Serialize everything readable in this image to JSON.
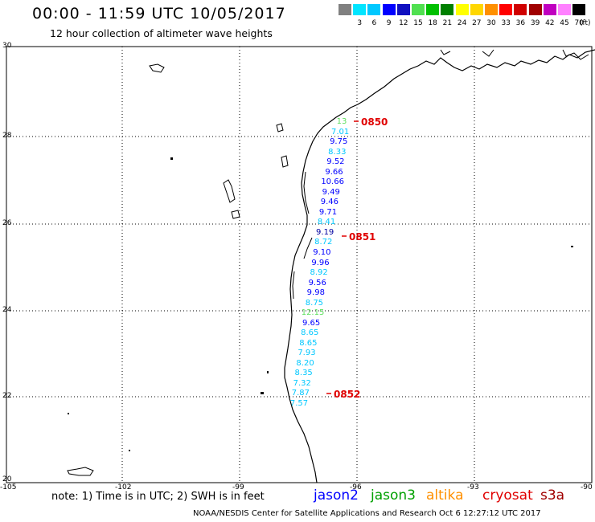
{
  "header": {
    "title": "00:00 - 11:59 UTC 10/05/2017",
    "subtitle": "12 hour collection of altimeter wave heights"
  },
  "scale": {
    "unit": "(ft)",
    "steps": [
      {
        "label": "",
        "color": "#808080"
      },
      {
        "label": "3",
        "color": "#00e5ff"
      },
      {
        "label": "6",
        "color": "#00c8ff"
      },
      {
        "label": "9",
        "color": "#0000ff"
      },
      {
        "label": "12",
        "color": "#1010c0"
      },
      {
        "label": "15",
        "color": "#50e050"
      },
      {
        "label": "18",
        "color": "#00c000"
      },
      {
        "label": "21",
        "color": "#008000"
      },
      {
        "label": "24",
        "color": "#ffff00"
      },
      {
        "label": "27",
        "color": "#ffd700"
      },
      {
        "label": "30",
        "color": "#ff9000"
      },
      {
        "label": "33",
        "color": "#ff0000"
      },
      {
        "label": "36",
        "color": "#d00000"
      },
      {
        "label": "39",
        "color": "#a00000"
      },
      {
        "label": "42",
        "color": "#c000c0"
      },
      {
        "label": "45",
        "color": "#ff80ff"
      },
      {
        "label": "70",
        "color": "#000000"
      }
    ]
  },
  "axes": {
    "lat_labels": [
      "30",
      "28",
      "26",
      "24",
      "22",
      "20"
    ],
    "lon_labels": [
      "-105",
      "-102",
      "-99",
      "-96",
      "-93",
      "-90"
    ]
  },
  "pass_times": [
    "0850",
    "0851",
    "0852"
  ],
  "track_values": [
    {
      "text": "13",
      "color": "#60e060"
    },
    {
      "text": "7.01",
      "color": "#00c8ff"
    },
    {
      "text": "9.75",
      "color": "#0000ff"
    },
    {
      "text": "8.33",
      "color": "#00c8ff"
    },
    {
      "text": "9.52",
      "color": "#0000ff"
    },
    {
      "text": "9.66",
      "color": "#0000ff"
    },
    {
      "text": "10.66",
      "color": "#0000ff"
    },
    {
      "text": "9.49",
      "color": "#0000ff"
    },
    {
      "text": "9.46",
      "color": "#0000ff"
    },
    {
      "text": "9.71",
      "color": "#0000ff"
    },
    {
      "text": "8.41",
      "color": "#00c8ff"
    },
    {
      "text": "9.19",
      "color": "#0000a0"
    },
    {
      "text": "8.72",
      "color": "#00c8ff"
    },
    {
      "text": "9.10",
      "color": "#0000ff"
    },
    {
      "text": "9.96",
      "color": "#0000ff"
    },
    {
      "text": "8.92",
      "color": "#00c8ff"
    },
    {
      "text": "9.56",
      "color": "#0000ff"
    },
    {
      "text": "9.98",
      "color": "#0000ff"
    },
    {
      "text": "8.75",
      "color": "#00c8ff"
    },
    {
      "text": "12.15",
      "color": "#60e060"
    },
    {
      "text": "9.65",
      "color": "#0000ff"
    },
    {
      "text": "8.65",
      "color": "#00c8ff"
    },
    {
      "text": "8.65",
      "color": "#00c8ff"
    },
    {
      "text": "7.93",
      "color": "#00c8ff"
    },
    {
      "text": "8.20",
      "color": "#00c8ff"
    },
    {
      "text": "8.35",
      "color": "#00c8ff"
    },
    {
      "text": "7.32",
      "color": "#00c8ff"
    },
    {
      "text": "7.87",
      "color": "#00c8ff"
    },
    {
      "text": "7.57",
      "color": "#00c8ff"
    }
  ],
  "footer": {
    "note": "note: 1) Time is in UTC; 2) SWH is in feet",
    "satellites": [
      {
        "name": "jason2",
        "color": "#0000ff"
      },
      {
        "name": "jason3",
        "color": "#00a000"
      },
      {
        "name": "altika",
        "color": "#ff9000"
      },
      {
        "name": "cryosat",
        "color": "#e00000"
      },
      {
        "name": "s3a",
        "color": "#a00000"
      }
    ],
    "credit": "NOAA/NESDIS Center for Satellite Applications and Research   Oct  6 12:27:12 UTC 2017"
  }
}
